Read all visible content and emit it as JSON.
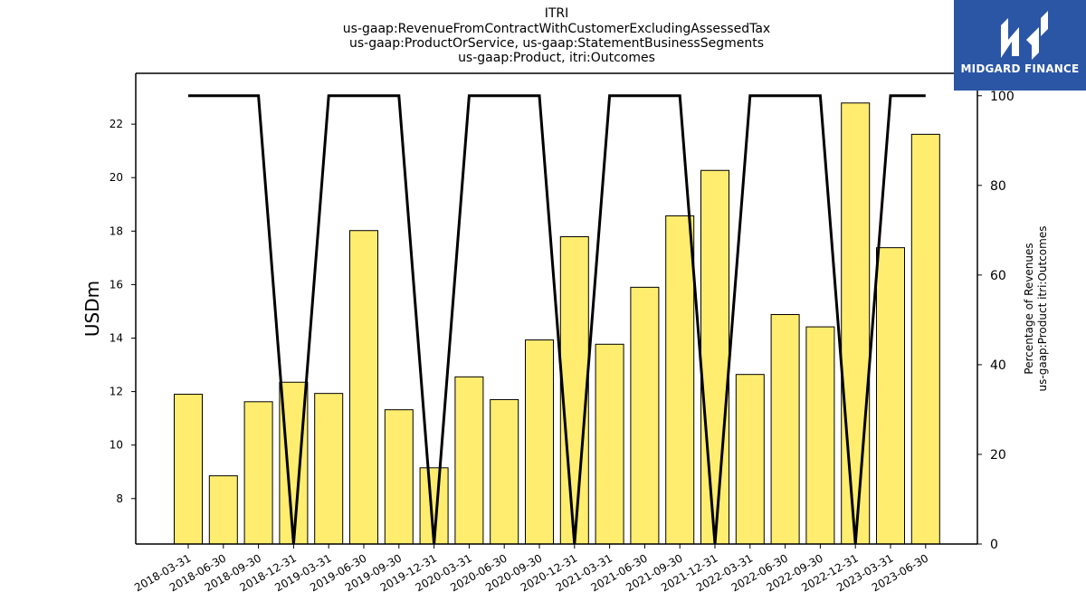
{
  "title": {
    "lines": [
      "ITRI",
      "us-gaap:RevenueFromContractWithCustomerExcludingAssessedTax",
      "us-gaap:ProductOrService, us-gaap:StatementBusinessSegments",
      "us-gaap:Product, itri:Outcomes"
    ]
  },
  "logo": {
    "text": "MIDGARD FINANCE",
    "background": "#2b56a6"
  },
  "chart_data": {
    "type": "bar",
    "categories": [
      "2018-03-31",
      "2018-06-30",
      "2018-09-30",
      "2018-12-31",
      "2019-03-31",
      "2019-06-30",
      "2019-09-30",
      "2019-12-31",
      "2020-03-31",
      "2020-06-30",
      "2020-09-30",
      "2020-12-31",
      "2021-03-31",
      "2021-06-30",
      "2021-09-30",
      "2021-12-31",
      "2022-03-31",
      "2022-06-30",
      "2022-09-30",
      "2022-12-31",
      "2023-03-31",
      "2023-06-30"
    ],
    "series": [
      {
        "axis": "left",
        "kind": "bar",
        "color": "#ffed6f",
        "values": [
          11.9,
          8.85,
          11.62,
          12.35,
          11.93,
          18.02,
          11.32,
          9.15,
          12.55,
          11.7,
          13.93,
          17.79,
          13.77,
          15.9,
          18.57,
          20.27,
          12.64,
          14.88,
          14.42,
          22.79,
          17.38,
          21.62
        ]
      },
      {
        "axis": "right",
        "kind": "line",
        "color": "#000000",
        "values": [
          100,
          100,
          100,
          0,
          100,
          100,
          100,
          0,
          100,
          100,
          100,
          0,
          100,
          100,
          100,
          0,
          100,
          100,
          100,
          0,
          100,
          100
        ]
      }
    ],
    "ylabel": "USDm",
    "y2label": [
      "Percentage of Revenues",
      "us-gaap:Product itri:Outcomes"
    ],
    "ylim": [
      6.3,
      23.9
    ],
    "y2lim": [
      0,
      105
    ],
    "yticks": [
      8,
      10,
      12,
      14,
      16,
      18,
      20,
      22
    ],
    "y2ticks": [
      0,
      20,
      40,
      60,
      80,
      100
    ],
    "grid": false,
    "legend": "none"
  }
}
